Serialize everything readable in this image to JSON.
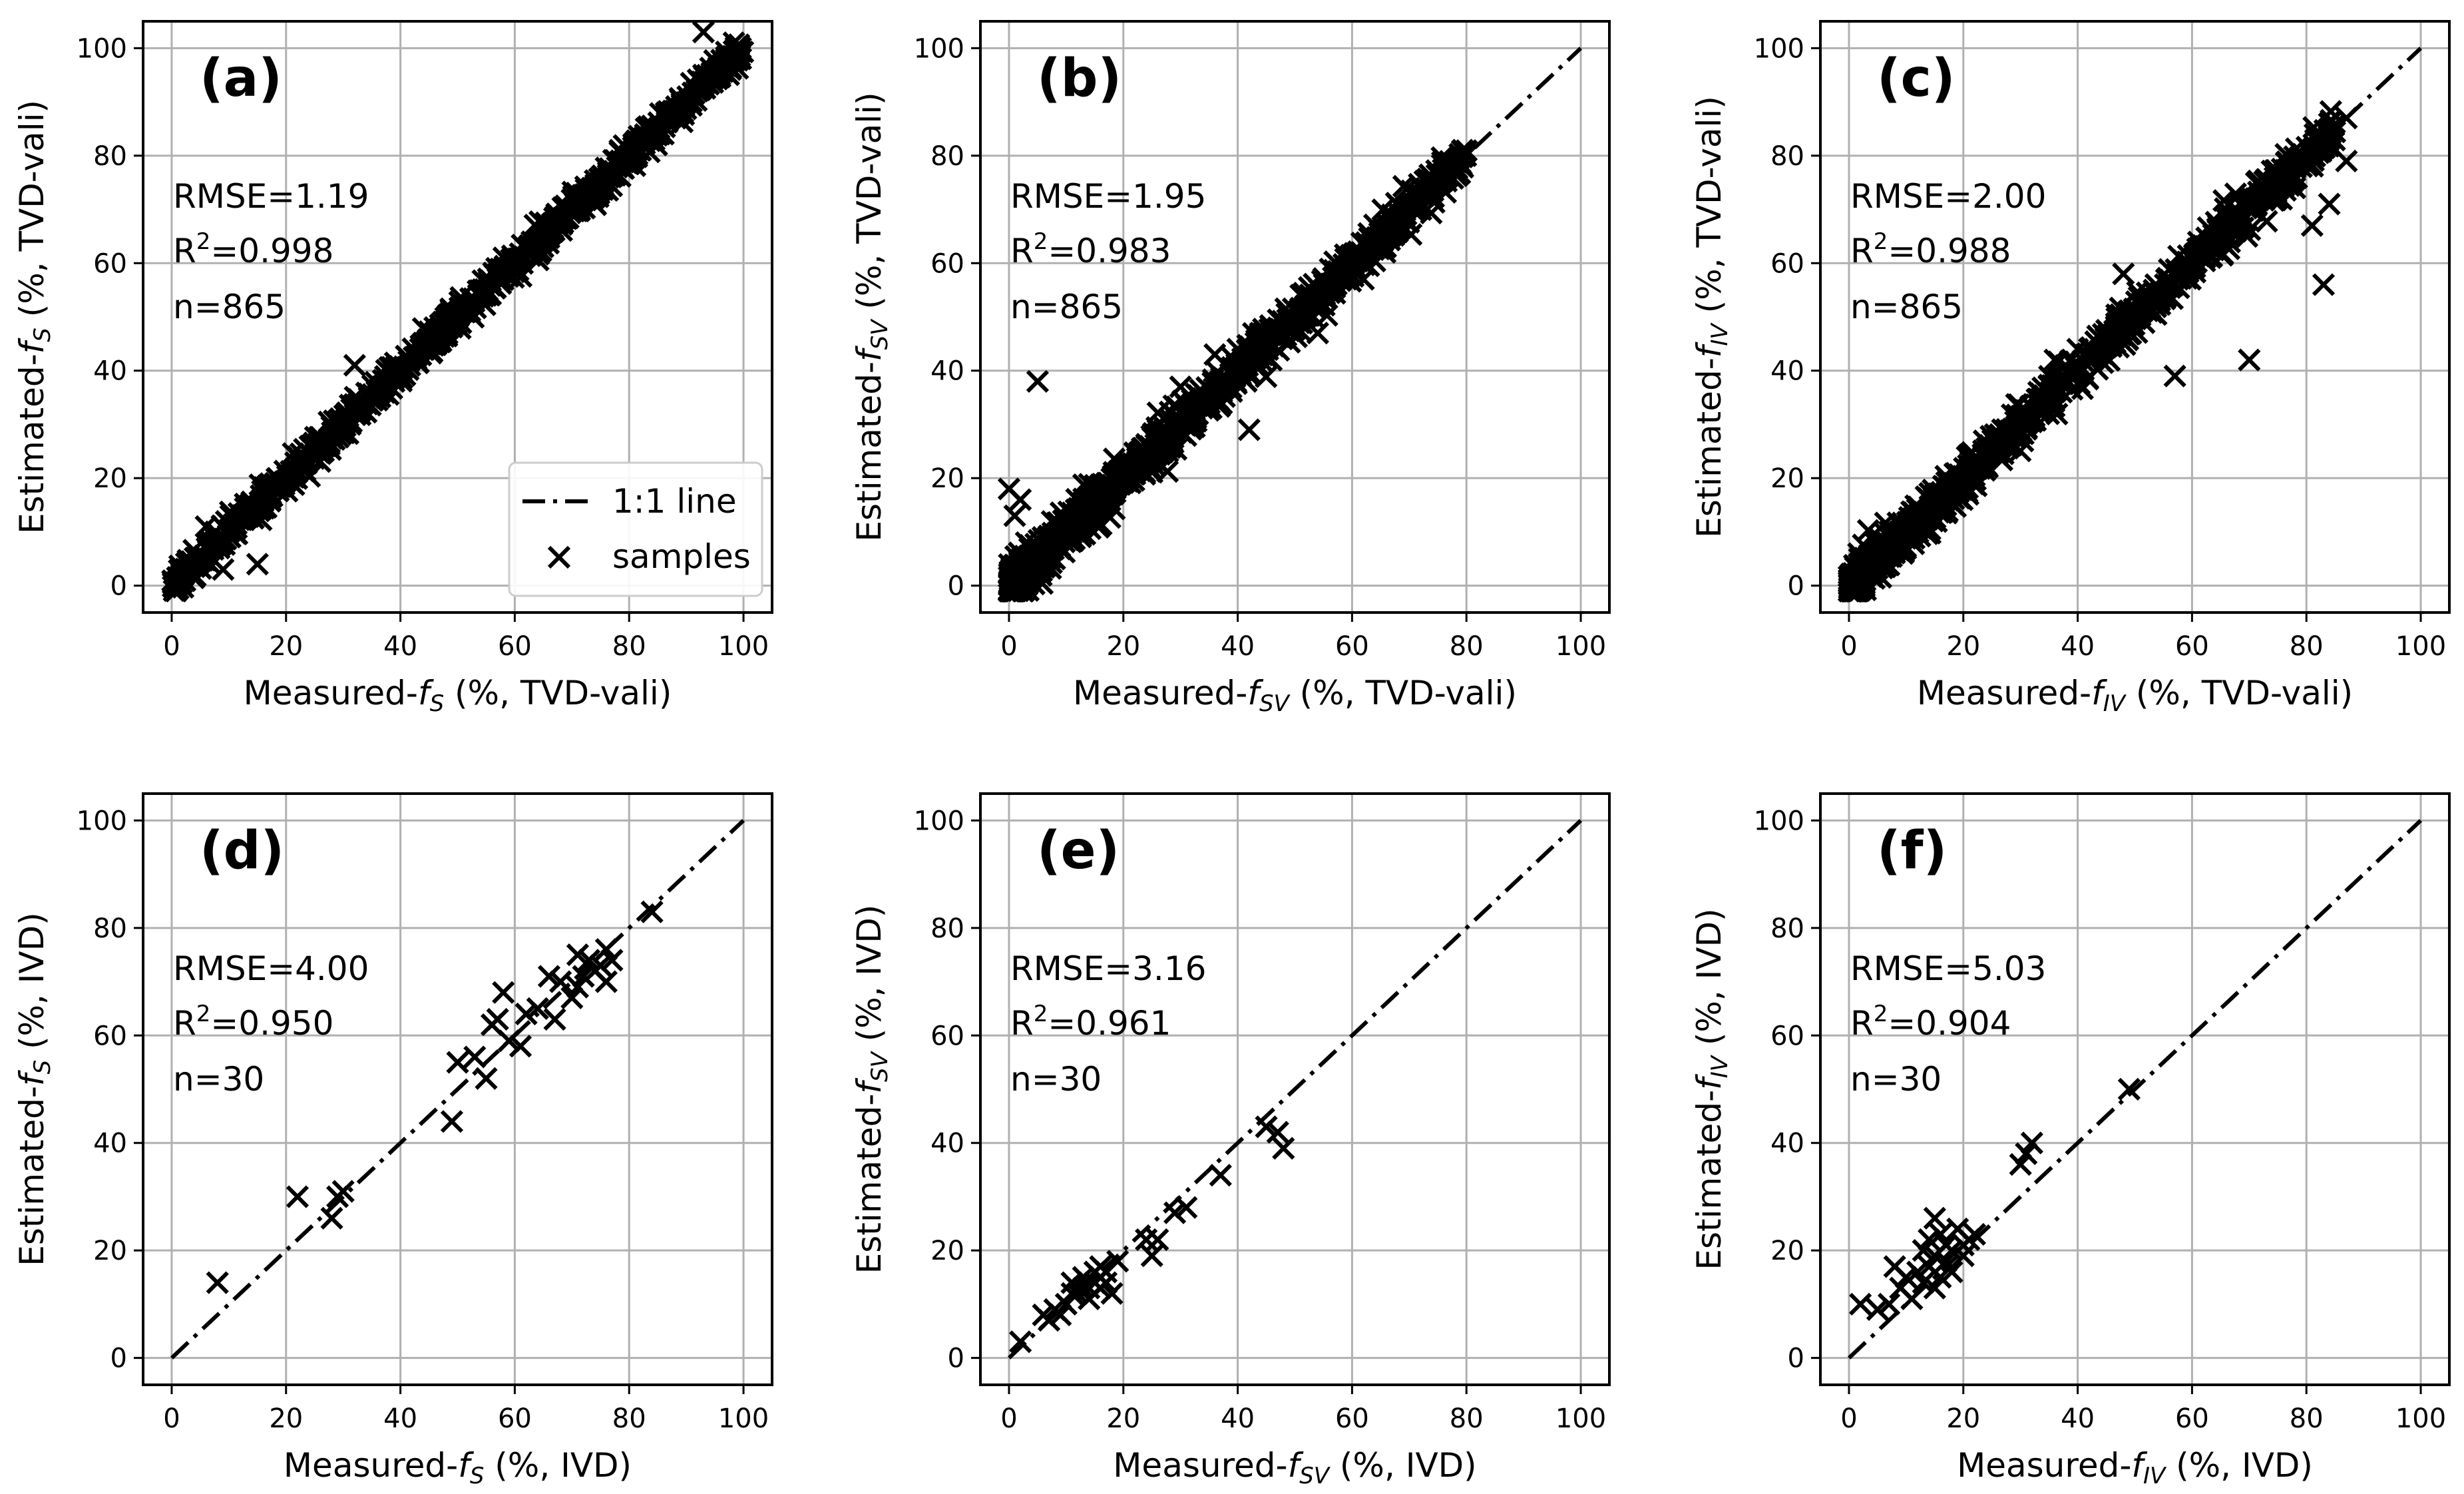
{
  "figure": {
    "background": "#ffffff",
    "marker_color": "#000000",
    "grid_color": "#b0b0b0"
  },
  "legend": {
    "line_label": "1:1 line",
    "marker_label": "samples",
    "location": "lower-right of panel (a)"
  },
  "chart_data": [
    {
      "type": "scatter",
      "panel": "(a)",
      "xlabel": {
        "prefix": "Measured-",
        "var": "f",
        "sub": "S",
        "suffix": " (%, TVD-vali)"
      },
      "ylabel": {
        "prefix": "Estimated-",
        "var": "f",
        "sub": "S",
        "suffix": " (%, TVD-vali)"
      },
      "xlim": [
        -5,
        105
      ],
      "ylim": [
        -5,
        105
      ],
      "ticks": [
        0,
        20,
        40,
        60,
        80,
        100
      ],
      "stats": {
        "rmse": "RMSE=1.19",
        "r2_prefix": "R",
        "r2_sup": "2",
        "r2_value": "=0.998",
        "n": "n=865"
      },
      "one_to_one_line": [
        [
          0,
          0
        ],
        [
          100,
          100
        ]
      ],
      "spread": 1.2,
      "outliers": [
        [
          15,
          4
        ],
        [
          32,
          41
        ],
        [
          9,
          3
        ],
        [
          6,
          11
        ],
        [
          93,
          103
        ],
        [
          86,
          84
        ],
        [
          22,
          24
        ],
        [
          97,
          98
        ],
        [
          55,
          54
        ]
      ]
    },
    {
      "type": "scatter",
      "panel": "(b)",
      "xlabel": {
        "prefix": "Measured-",
        "var": "f",
        "sub": "SV",
        "suffix": " (%, TVD-vali)"
      },
      "ylabel": {
        "prefix": "Estimated-",
        "var": "f",
        "sub": "SV",
        "suffix": " (%, TVD-vali)"
      },
      "xlim": [
        -5,
        105
      ],
      "ylim": [
        -5,
        105
      ],
      "ticks": [
        0,
        20,
        40,
        60,
        80,
        100
      ],
      "stats": {
        "rmse": "RMSE=1.95",
        "r2_prefix": "R",
        "r2_sup": "2",
        "r2_value": "=0.983",
        "n": "n=865"
      },
      "one_to_one_line": [
        [
          0,
          0
        ],
        [
          100,
          100
        ]
      ],
      "spread": 1.9,
      "outliers": [
        [
          5,
          38
        ],
        [
          0,
          18
        ],
        [
          1,
          13
        ],
        [
          2,
          16
        ],
        [
          42,
          29
        ],
        [
          36,
          43
        ],
        [
          30,
          37
        ],
        [
          62,
          57
        ],
        [
          54,
          47
        ],
        [
          78,
          78
        ],
        [
          3,
          8
        ],
        [
          40,
          44
        ]
      ]
    },
    {
      "type": "scatter",
      "panel": "(c)",
      "xlabel": {
        "prefix": "Measured-",
        "var": "f",
        "sub": "IV",
        "suffix": " (%, TVD-vali)"
      },
      "ylabel": {
        "prefix": "Estimated-",
        "var": "f",
        "sub": "IV",
        "suffix": " (%, TVD-vali)"
      },
      "xlim": [
        -5,
        105
      ],
      "ylim": [
        -5,
        105
      ],
      "ticks": [
        0,
        20,
        40,
        60,
        80,
        100
      ],
      "stats": {
        "rmse": "RMSE=2.00",
        "r2_prefix": "R",
        "r2_sup": "2",
        "r2_value": "=0.988",
        "n": "n=865"
      },
      "one_to_one_line": [
        [
          0,
          0
        ],
        [
          100,
          100
        ]
      ],
      "spread": 1.9,
      "outliers": [
        [
          70,
          42
        ],
        [
          57,
          39
        ],
        [
          83,
          56
        ],
        [
          84,
          71
        ],
        [
          81,
          67
        ],
        [
          87,
          79
        ],
        [
          84,
          86
        ],
        [
          87,
          87
        ],
        [
          48,
          58
        ],
        [
          78,
          74
        ],
        [
          36,
          42
        ],
        [
          40,
          44
        ]
      ]
    },
    {
      "type": "scatter",
      "panel": "(d)",
      "xlabel": {
        "prefix": "Measured-",
        "var": "f",
        "sub": "S",
        "suffix": " (%, IVD)"
      },
      "ylabel": {
        "prefix": "Estimated-",
        "var": "f",
        "sub": "S",
        "suffix": " (%, IVD)"
      },
      "xlim": [
        -5,
        105
      ],
      "ylim": [
        -5,
        105
      ],
      "ticks": [
        0,
        20,
        40,
        60,
        80,
        100
      ],
      "stats": {
        "rmse": "RMSE=4.00",
        "r2_prefix": "R",
        "r2_sup": "2",
        "r2_value": "=0.950",
        "n": "n=30"
      },
      "one_to_one_line": [
        [
          0,
          0
        ],
        [
          100,
          100
        ]
      ],
      "points": [
        [
          8,
          14
        ],
        [
          22,
          30
        ],
        [
          28,
          26
        ],
        [
          29,
          30
        ],
        [
          30,
          31
        ],
        [
          49,
          44
        ],
        [
          50,
          55
        ],
        [
          53,
          56
        ],
        [
          55,
          52
        ],
        [
          56,
          62
        ],
        [
          57,
          63
        ],
        [
          58,
          68
        ],
        [
          59,
          59
        ],
        [
          61,
          58
        ],
        [
          62,
          64
        ],
        [
          64,
          65
        ],
        [
          66,
          71
        ],
        [
          67,
          63
        ],
        [
          68,
          70
        ],
        [
          70,
          67
        ],
        [
          71,
          75
        ],
        [
          71,
          69
        ],
        [
          72,
          71
        ],
        [
          73,
          74
        ],
        [
          74,
          72
        ],
        [
          75,
          73
        ],
        [
          76,
          70
        ],
        [
          76,
          76
        ],
        [
          77,
          74
        ],
        [
          84,
          83
        ]
      ]
    },
    {
      "type": "scatter",
      "panel": "(e)",
      "xlabel": {
        "prefix": "Measured-",
        "var": "f",
        "sub": "SV",
        "suffix": " (%, IVD)"
      },
      "ylabel": {
        "prefix": "Estimated-",
        "var": "f",
        "sub": "SV",
        "suffix": " (%, IVD)"
      },
      "xlim": [
        -5,
        105
      ],
      "ylim": [
        -5,
        105
      ],
      "ticks": [
        0,
        20,
        40,
        60,
        80,
        100
      ],
      "stats": {
        "rmse": "RMSE=3.16",
        "r2_prefix": "R",
        "r2_sup": "2",
        "r2_value": "=0.961",
        "n": "n=30"
      },
      "one_to_one_line": [
        [
          0,
          0
        ],
        [
          100,
          100
        ]
      ],
      "points": [
        [
          2,
          3
        ],
        [
          6,
          8
        ],
        [
          7,
          7
        ],
        [
          8,
          9
        ],
        [
          9,
          8
        ],
        [
          10,
          10
        ],
        [
          11,
          12
        ],
        [
          11,
          14
        ],
        [
          12,
          12
        ],
        [
          13,
          13
        ],
        [
          13,
          15
        ],
        [
          14,
          11
        ],
        [
          14,
          13
        ],
        [
          15,
          14
        ],
        [
          15,
          16
        ],
        [
          16,
          13
        ],
        [
          16,
          17
        ],
        [
          17,
          14
        ],
        [
          17,
          16
        ],
        [
          18,
          12
        ],
        [
          19,
          18
        ],
        [
          24,
          22
        ],
        [
          25,
          19
        ],
        [
          26,
          22
        ],
        [
          29,
          27
        ],
        [
          31,
          28
        ],
        [
          37,
          34
        ],
        [
          45,
          43
        ],
        [
          47,
          42
        ],
        [
          48,
          39
        ]
      ]
    },
    {
      "type": "scatter",
      "panel": "(f)",
      "xlabel": {
        "prefix": "Measured-",
        "var": "f",
        "sub": "IV",
        "suffix": " (%, IVD)"
      },
      "ylabel": {
        "prefix": "Estimated-",
        "var": "f",
        "sub": "IV",
        "suffix": " (%, IVD)"
      },
      "xlim": [
        -5,
        105
      ],
      "ylim": [
        -5,
        105
      ],
      "ticks": [
        0,
        20,
        40,
        60,
        80,
        100
      ],
      "stats": {
        "rmse": "RMSE=5.03",
        "r2_prefix": "R",
        "r2_sup": "2",
        "r2_value": "=0.904",
        "n": "n=30"
      },
      "one_to_one_line": [
        [
          0,
          0
        ],
        [
          100,
          100
        ]
      ],
      "points": [
        [
          2,
          10
        ],
        [
          5,
          9
        ],
        [
          7,
          10
        ],
        [
          8,
          17
        ],
        [
          9,
          13
        ],
        [
          10,
          15
        ],
        [
          11,
          11
        ],
        [
          12,
          16
        ],
        [
          13,
          14
        ],
        [
          13,
          20
        ],
        [
          14,
          17
        ],
        [
          14,
          22
        ],
        [
          15,
          26
        ],
        [
          15,
          13
        ],
        [
          15,
          19
        ],
        [
          16,
          15
        ],
        [
          16,
          23
        ],
        [
          17,
          18
        ],
        [
          17,
          21
        ],
        [
          18,
          16
        ],
        [
          18,
          20
        ],
        [
          19,
          24
        ],
        [
          20,
          21
        ],
        [
          20,
          19
        ],
        [
          21,
          22
        ],
        [
          22,
          23
        ],
        [
          30,
          36
        ],
        [
          31,
          38
        ],
        [
          32,
          40
        ],
        [
          49,
          50
        ]
      ]
    }
  ]
}
